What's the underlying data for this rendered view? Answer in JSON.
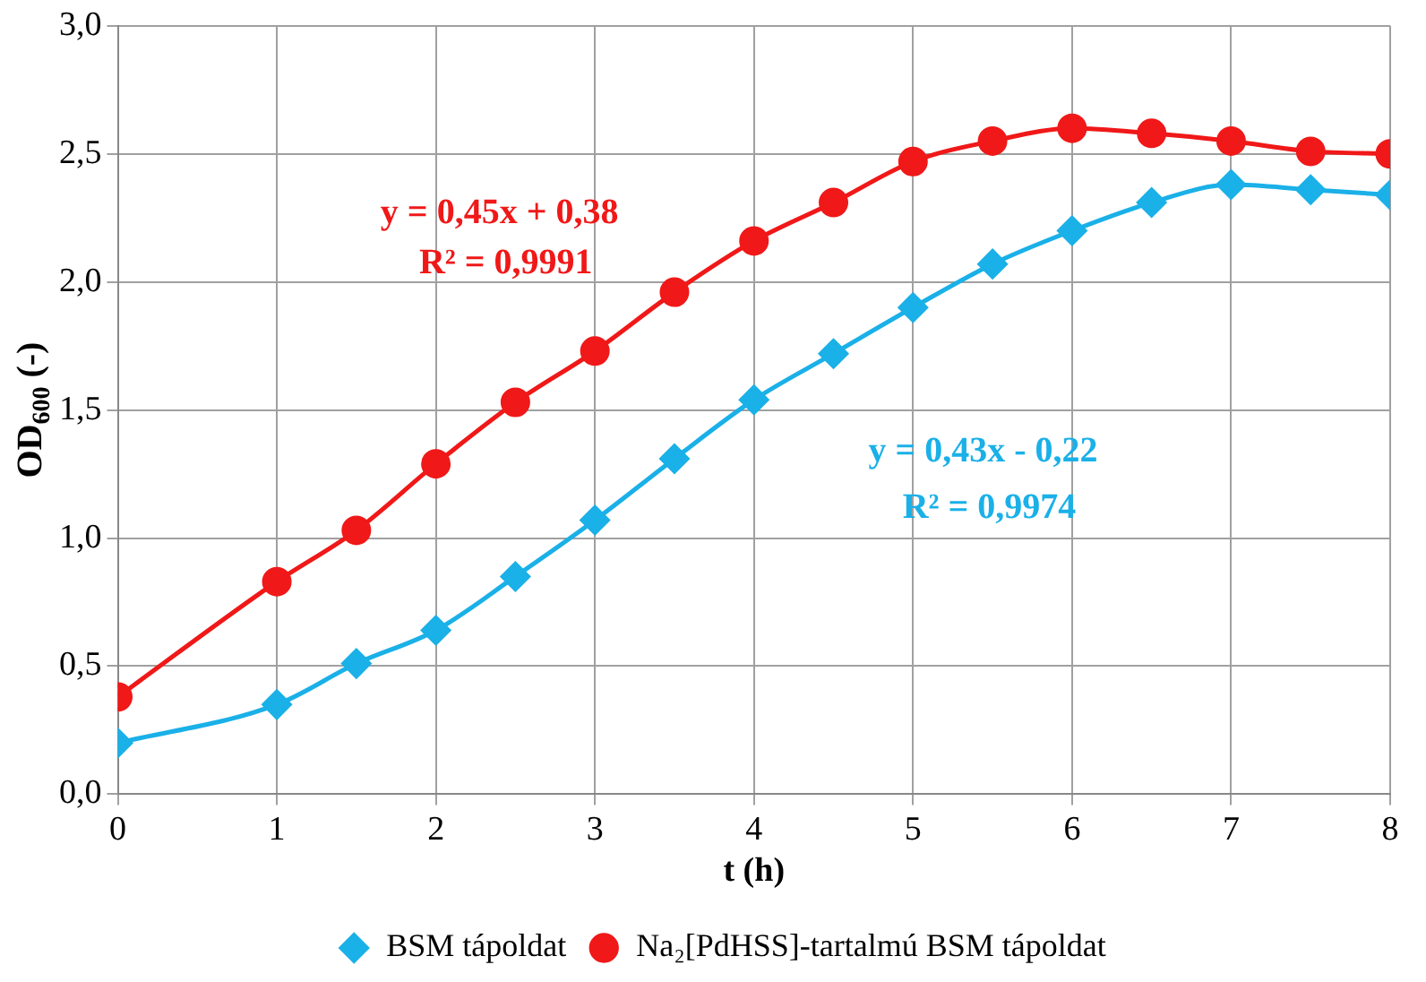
{
  "chart_data": {
    "type": "line",
    "xlabel": "t (h)",
    "ylabel": "OD$_{600}$ (-)",
    "xlim": [
      0,
      8
    ],
    "xticks": [
      0,
      1,
      2,
      3,
      4,
      5,
      6,
      7,
      8
    ],
    "ylim": [
      0,
      3
    ],
    "yticks": [
      {
        "value": 0,
        "label": "0,0"
      },
      {
        "value": 0.5,
        "label": "0,5"
      },
      {
        "value": 1,
        "label": "1,0"
      },
      {
        "value": 1.5,
        "label": "1,5"
      },
      {
        "value": 2,
        "label": "2,0"
      },
      {
        "value": 2.5,
        "label": "2,5"
      },
      {
        "value": 3,
        "label": "3,0"
      }
    ],
    "grid": true,
    "legend": "bottom",
    "line_style": "solid",
    "series": [
      {
        "name": "BSM tápoldat",
        "color": "#1ab0e8",
        "marker": "diamond",
        "x": [
          0,
          1,
          1.5,
          2,
          2.5,
          3,
          3.5,
          4,
          4.5,
          5,
          5.5,
          6,
          6.5,
          7,
          7.5,
          8
        ],
        "values": [
          0.2,
          0.35,
          0.51,
          0.64,
          0.85,
          1.07,
          1.31,
          1.54,
          1.72,
          1.9,
          2.07,
          2.2,
          2.31,
          2.38,
          2.36,
          2.34
        ]
      },
      {
        "name": "Na₂[PdHSS]-tartalmú BSM tápoldat",
        "color": "#f01818",
        "marker": "circle",
        "x": [
          0,
          1,
          1.5,
          2,
          2.5,
          3,
          3.5,
          4,
          4.5,
          5,
          5.5,
          6,
          6.5,
          7,
          7.5,
          8
        ],
        "values": [
          0.38,
          0.83,
          1.03,
          1.29,
          1.53,
          1.73,
          1.96,
          2.16,
          2.31,
          2.47,
          2.55,
          2.6,
          2.58,
          2.55,
          2.51,
          2.5
        ]
      }
    ],
    "annotations": [
      "y = 0,43x - 0,22",
      "R² = 0,9974",
      "y = 0,45x + 0,38",
      "R² = 0,9991"
    ]
  }
}
